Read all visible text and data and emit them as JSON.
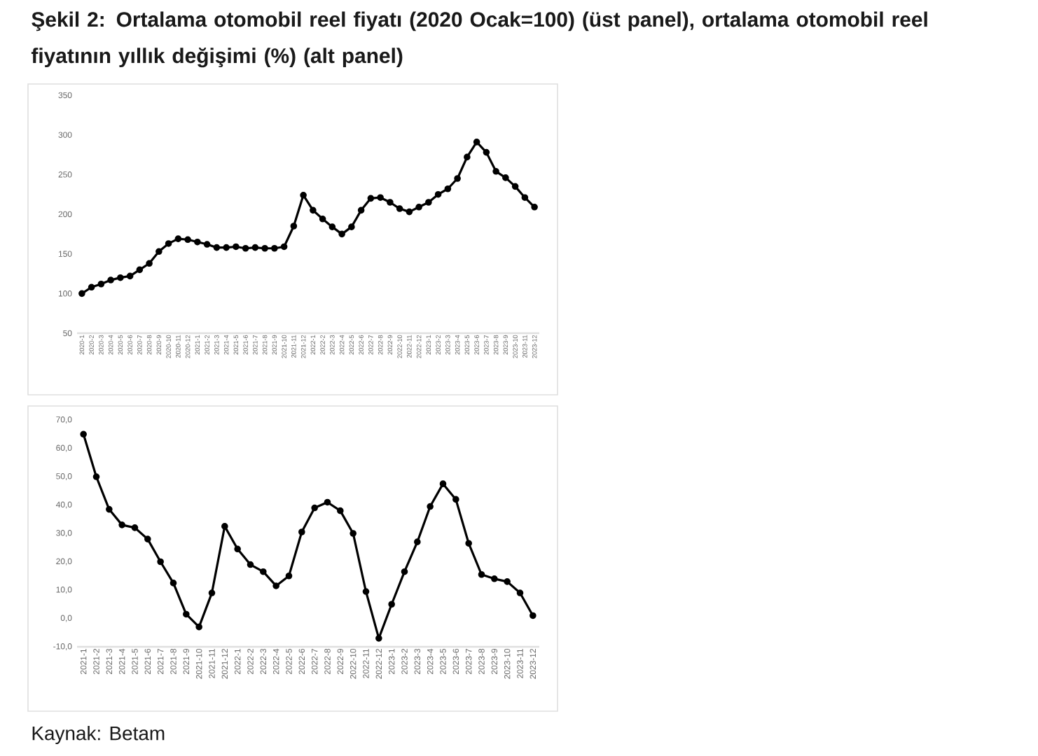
{
  "chart_data": [
    {
      "type": "line",
      "title": "Şekil 2: Ortalama otomobil reel fiyatı (2020 Ocak=100) (üst panel), ortalama otomobil reel fiyatının yıllık değişimi (%) (alt panel)",
      "categories": [
        "2020-1",
        "2020-2",
        "2020-3",
        "2020-4",
        "2020-5",
        "2020-6",
        "2020-7",
        "2020-8",
        "2020-9",
        "2020-10",
        "2020-11",
        "2020-12",
        "2021-1",
        "2021-2",
        "2021-3",
        "2021-4",
        "2021-5",
        "2021-6",
        "2021-7",
        "2021-8",
        "2021-9",
        "2021-10",
        "2021-11",
        "2021-12",
        "2022-1",
        "2022-2",
        "2022-3",
        "2022-4",
        "2022-5",
        "2022-6",
        "2022-7",
        "2022-8",
        "2022-9",
        "2022-10",
        "2022-11",
        "2022-12",
        "2023-1",
        "2023-2",
        "2023-3",
        "2023-4",
        "2023-5",
        "2023-6",
        "2023-7",
        "2023-8",
        "2023-9",
        "2023-10",
        "2023-11",
        "2023-12"
      ],
      "values": [
        100,
        108,
        112,
        117,
        120,
        122,
        130,
        138,
        153,
        163,
        169,
        168,
        165,
        162,
        158,
        158,
        159,
        157,
        158,
        157,
        157,
        159,
        185,
        224,
        205,
        194,
        184,
        175,
        184,
        205,
        220,
        221,
        215,
        207,
        203,
        209,
        215,
        225,
        232,
        245,
        272,
        291,
        278,
        254,
        246,
        235,
        221,
        209
      ],
      "color": "#000000",
      "marker": "circle",
      "line_style": "solid",
      "ylim": [
        50,
        350
      ],
      "yticks": [
        50,
        100,
        150,
        200,
        250,
        300,
        350
      ]
    },
    {
      "type": "line",
      "categories": [
        "2021-1",
        "2021-2",
        "2021-3",
        "2021-4",
        "2021-5",
        "2021-6",
        "2021-7",
        "2021-8",
        "2021-9",
        "2021-10",
        "2021-11",
        "2021-12",
        "2022-1",
        "2022-2",
        "2022-3",
        "2022-4",
        "2022-5",
        "2022-6",
        "2022-7",
        "2022-8",
        "2022-9",
        "2022-10",
        "2022-11",
        "2022-12",
        "2023-1",
        "2023-2",
        "2023-3",
        "2023-4",
        "2023-5",
        "2023-6",
        "2023-7",
        "2023-8",
        "2023-9",
        "2023-10",
        "2023-11",
        "2023-12"
      ],
      "values": [
        65,
        50,
        38.5,
        33,
        32,
        28,
        20,
        12.5,
        1.5,
        -3,
        9,
        32.5,
        24.5,
        19,
        16.5,
        11.5,
        15,
        30.5,
        39,
        41,
        38,
        30,
        9.5,
        -7,
        5,
        16.5,
        27,
        39.5,
        47.5,
        42,
        26.5,
        15.5,
        14,
        13,
        9,
        1
      ],
      "color": "#000000",
      "marker": "circle",
      "line_style": "solid",
      "ylim": [
        -10,
        70
      ],
      "yticks": [
        {
          "value": -10,
          "label": "-10,0"
        },
        {
          "value": 0,
          "label": "0,0"
        },
        {
          "value": 10,
          "label": "10,0"
        },
        {
          "value": 20,
          "label": "20,0"
        },
        {
          "value": 30,
          "label": "30,0"
        },
        {
          "value": 40,
          "label": "40,0"
        },
        {
          "value": 50,
          "label": "50,0"
        },
        {
          "value": 60,
          "label": "60,0"
        },
        {
          "value": 70,
          "label": "70,0"
        }
      ],
      "annotations": [
        "Kaynak: Betam"
      ]
    }
  ]
}
